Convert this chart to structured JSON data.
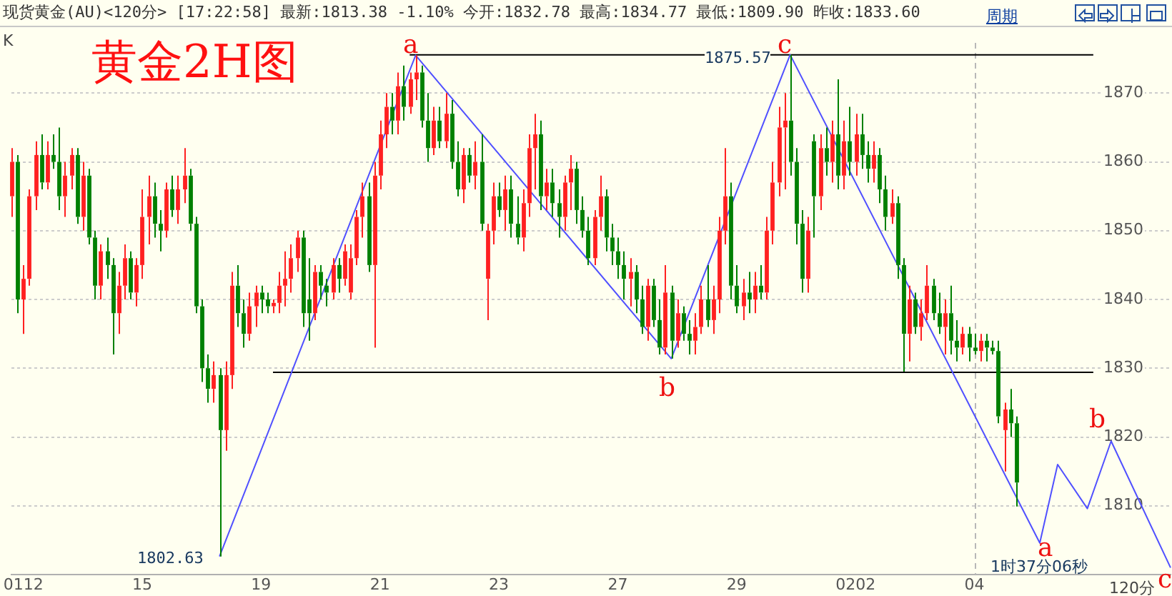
{
  "chart_data": {
    "type": "candlestick",
    "title": "黄金2H图",
    "subtitle": "现货黄金(AU)<120分>  [17:22:58] 最新:1813.38 -1.10% 今开:1832.78 最高:1834.77 最低:1809.90 昨收:1833.60",
    "categories": [
      null,
      null,
      "0112",
      null,
      null,
      null,
      null,
      null,
      null,
      null,
      null,
      null,
      null,
      null,
      null,
      null,
      null,
      null,
      null,
      null,
      null,
      null,
      "15",
      null,
      null,
      null,
      null,
      null,
      null,
      null,
      null,
      null,
      null,
      null,
      null,
      null,
      null,
      null,
      null,
      null,
      null,
      null,
      "19",
      null,
      null,
      null,
      null,
      null,
      null,
      null,
      null,
      null,
      null,
      null,
      null,
      null,
      null,
      null,
      null,
      null,
      null,
      null,
      "21",
      null,
      null,
      null,
      null,
      null,
      null,
      null,
      null,
      null,
      null,
      null,
      null,
      null,
      null,
      null,
      null,
      null,
      null,
      null,
      "23",
      null,
      null,
      null,
      null,
      null,
      null,
      null,
      null,
      null,
      null,
      null,
      null,
      null,
      null,
      null,
      null,
      null,
      null,
      null,
      "27",
      null,
      null,
      null,
      null,
      null,
      null,
      null,
      null,
      null,
      null,
      null,
      null,
      null,
      null,
      null,
      null,
      null,
      null,
      null,
      "29",
      null,
      null,
      null,
      null,
      null,
      null,
      null,
      null,
      null,
      null,
      null,
      null,
      null,
      null,
      null,
      null,
      null,
      null,
      null,
      "0202",
      null,
      null,
      null,
      null,
      null,
      null,
      null,
      null,
      null,
      null,
      null,
      null,
      null,
      null,
      null,
      null,
      null,
      null,
      null,
      "04",
      null,
      null,
      null,
      null,
      null,
      null,
      null,
      null,
      null,
      null,
      null,
      null,
      null,
      null,
      null,
      null,
      null,
      null,
      null,
      null,
      null,
      null,
      null,
      null,
      null,
      null,
      null,
      null,
      null,
      null,
      null,
      null,
      null
    ],
    "ylim": [
      1800,
      1877.3
    ],
    "yticks": [
      1810,
      1820,
      1830,
      1840,
      1850,
      1860,
      1870
    ],
    "grid": "y",
    "series": [
      {
        "type": "candlestick",
        "color": "#ff2020",
        "ohlc": [
          [
            1855,
            1862,
            1852,
            1860
          ],
          null,
          [
            1840,
            1845,
            1835,
            1843
          ],
          [
            1843,
            1856,
            1842,
            1855
          ],
          [
            1855,
            1863,
            1853,
            1861
          ],
          null,
          [
            1857,
            1863,
            1856,
            1861
          ],
          null,
          null,
          [
            1855,
            1860,
            1852,
            1858
          ],
          [
            1858,
            1862,
            1856,
            1861
          ],
          null,
          [
            1852,
            1860,
            1850,
            1858
          ],
          null,
          null,
          [
            1842,
            1848,
            1840,
            1847
          ],
          null,
          null,
          [
            1838,
            1844,
            1835,
            1842
          ],
          [
            1842,
            1848,
            1840,
            1846
          ],
          null,
          [
            1841,
            1846,
            1839,
            1845
          ],
          [
            1845,
            1856,
            1843,
            1852
          ],
          [
            1852,
            1858,
            1848,
            1855
          ],
          null,
          null,
          [
            1850,
            1857,
            1849,
            1856
          ],
          null,
          [
            1853,
            1858,
            1851,
            1856
          ],
          [
            1856,
            1862,
            1854,
            1858
          ],
          null,
          null,
          null,
          null,
          [
            1827,
            1831,
            1825,
            1829
          ],
          null,
          [
            1821,
            1831,
            1818,
            1829
          ],
          [
            1829,
            1844,
            1827,
            1842
          ],
          null,
          null,
          [
            1835,
            1841,
            1834,
            1839
          ],
          [
            1839,
            1842,
            1836,
            1841
          ],
          null,
          null,
          [
            1839,
            1840,
            1838,
            1839.5
          ],
          [
            1839.5,
            1844,
            1838,
            1842
          ],
          [
            1842,
            1847,
            1839,
            1843
          ],
          [
            1843,
            1848,
            1841,
            1846
          ],
          [
            1846,
            1850,
            1844,
            1849
          ],
          null,
          null,
          [
            1838,
            1845,
            1837,
            1844
          ],
          null,
          null,
          [
            1841,
            1846,
            1840,
            1845
          ],
          null,
          [
            1843,
            1848,
            1842,
            1847
          ],
          [
            1841,
            1848,
            1840,
            1846
          ],
          [
            1846,
            1853,
            1845,
            1852
          ],
          [
            1852,
            1857,
            1849,
            1855
          ],
          null,
          [
            1845,
            1860,
            1833,
            1858
          ],
          [
            1858,
            1866,
            1856,
            1864
          ],
          [
            1864,
            1870,
            1862,
            1868
          ],
          null,
          [
            1866,
            1873,
            1864,
            1871
          ],
          null,
          [
            1868,
            1873,
            1867,
            1872
          ],
          [
            1872,
            1875.5,
            1869,
            1873
          ],
          null,
          null,
          [
            1862,
            1868,
            1861,
            1866
          ],
          null,
          [
            1863,
            1870,
            1862,
            1867
          ],
          null,
          null,
          [
            1856,
            1862,
            1854,
            1861
          ],
          null,
          [
            1858,
            1863,
            1856,
            1860
          ],
          null,
          [
            1843,
            1851,
            1837,
            1850
          ],
          [
            1850,
            1857,
            1848,
            1855
          ],
          null,
          [
            1853,
            1858,
            1850,
            1856
          ],
          null,
          null,
          [
            1849,
            1856,
            1847,
            1854
          ],
          [
            1854,
            1864,
            1852,
            1862
          ],
          [
            1862,
            1867,
            1856,
            1864
          ],
          null,
          [
            1855,
            1859,
            1853,
            1857
          ],
          null,
          null,
          [
            1852,
            1858,
            1850,
            1857
          ],
          [
            1857,
            1861,
            1853,
            1859
          ],
          null,
          null,
          null,
          [
            1846,
            1853,
            1845,
            1852
          ],
          [
            1852,
            1858,
            1850,
            1855
          ],
          null,
          null,
          null,
          null,
          [
            1843,
            1846,
            1839,
            1844
          ],
          null,
          null,
          [
            1836,
            1843,
            1834,
            1842
          ],
          null,
          null,
          [
            1833,
            1845,
            1832,
            1841
          ],
          null,
          [
            1834,
            1840,
            1833,
            1838
          ],
          null,
          null,
          [
            1834,
            1838,
            1832,
            1836
          ],
          [
            1836,
            1842,
            1835,
            1840
          ],
          null,
          [
            1837,
            1842,
            1835,
            1840
          ],
          [
            1840,
            1852,
            1838,
            1850
          ],
          [
            1850,
            1862,
            1848,
            1855
          ],
          null,
          null,
          [
            1839,
            1843,
            1837,
            1841
          ],
          null,
          [
            1840,
            1844,
            1838,
            1842
          ],
          null,
          [
            1841,
            1852,
            1840,
            1850
          ],
          [
            1850,
            1860,
            1848,
            1857
          ],
          [
            1857,
            1868,
            1855,
            1865
          ],
          [
            1865,
            1870,
            1856,
            1866
          ],
          null,
          null,
          null,
          [
            1843,
            1852,
            1841,
            1850
          ],
          null,
          [
            1855,
            1864,
            1853,
            1862
          ],
          null,
          [
            1860,
            1866,
            1857,
            1864
          ],
          null,
          [
            1858,
            1866,
            1856,
            1863
          ],
          null,
          [
            1860,
            1867,
            1858,
            1864
          ],
          null,
          null,
          [
            1859,
            1863,
            1857,
            1861
          ],
          null,
          null,
          [
            1852,
            1856,
            1851,
            1854
          ],
          null,
          null,
          [
            1835,
            1842,
            1831,
            1840
          ],
          null,
          [
            1836,
            1840,
            1834,
            1838
          ],
          [
            1838,
            1845,
            1837,
            1842
          ],
          null,
          null,
          [
            1836,
            1840,
            1832,
            1838
          ],
          null,
          null,
          [
            1833,
            1836,
            1832,
            1835
          ],
          null,
          null,
          [
            1832.5,
            1835,
            1831,
            1834
          ],
          null,
          null,
          null,
          [
            1821,
            1825,
            1815,
            1824
          ],
          null,
          null,
          null,
          null,
          null,
          null,
          null,
          null,
          null,
          null,
          null,
          null,
          null,
          null,
          null,
          null,
          null,
          null,
          null,
          null,
          null,
          null,
          null,
          null,
          null,
          null,
          null,
          null
        ]
      },
      {
        "type": "candlestick",
        "color": "#008000",
        "ohlc": [
          null,
          [
            1860,
            1861,
            1838,
            1840
          ],
          null,
          null,
          null,
          [
            1861,
            1864,
            1856,
            1857
          ],
          null,
          [
            1861,
            1864,
            1859,
            1860
          ],
          [
            1860,
            1865,
            1853,
            1855
          ],
          null,
          null,
          [
            1861,
            1862,
            1851,
            1852
          ],
          null,
          [
            1858,
            1859,
            1848,
            1849
          ],
          [
            1849,
            1850,
            1840,
            1842
          ],
          null,
          [
            1847,
            1849,
            1843,
            1845
          ],
          [
            1845,
            1846,
            1832,
            1838
          ],
          null,
          null,
          [
            1846,
            1847,
            1840,
            1841
          ],
          null,
          null,
          null,
          [
            1855,
            1857,
            1849,
            1851
          ],
          [
            1851,
            1853,
            1847,
            1850
          ],
          null,
          [
            1856,
            1858,
            1852,
            1853
          ],
          null,
          null,
          [
            1858,
            1859,
            1850,
            1851
          ],
          [
            1851,
            1852,
            1838,
            1839
          ],
          [
            1839,
            1840,
            1828,
            1830
          ],
          [
            1830,
            1832,
            1825,
            1827
          ],
          null,
          [
            1829,
            1830,
            1802.63,
            1821
          ],
          null,
          null,
          [
            1842,
            1845,
            1836,
            1838
          ],
          [
            1838,
            1840,
            1833,
            1835
          ],
          null,
          null,
          [
            1841,
            1842,
            1838,
            1840
          ],
          [
            1840,
            1841,
            1838,
            1839
          ],
          null,
          null,
          null,
          null,
          null,
          [
            1849,
            1850,
            1836,
            1838
          ],
          [
            1840,
            1846,
            1834,
            1838
          ],
          null,
          [
            1844,
            1845,
            1840,
            1842
          ],
          [
            1842,
            1843,
            1839,
            1841
          ],
          null,
          [
            1845,
            1846,
            1841,
            1843
          ],
          null,
          null,
          null,
          null,
          [
            1855,
            1857,
            1844,
            1845
          ],
          null,
          null,
          null,
          [
            1868,
            1870,
            1864,
            1866
          ],
          null,
          [
            1871,
            1874,
            1866,
            1868
          ],
          null,
          null,
          [
            1873,
            1874,
            1865,
            1866
          ],
          [
            1866,
            1870,
            1860,
            1862
          ],
          null,
          [
            1866,
            1868,
            1862,
            1863
          ],
          null,
          [
            1867,
            1869,
            1859,
            1860
          ],
          [
            1860,
            1863,
            1855,
            1856
          ],
          null,
          [
            1861,
            1862,
            1857,
            1858
          ],
          null,
          [
            1860,
            1864,
            1850,
            1851
          ],
          null,
          null,
          [
            1855,
            1857,
            1852,
            1853
          ],
          null,
          [
            1856,
            1858,
            1849,
            1851
          ],
          [
            1851,
            1855,
            1848,
            1849
          ],
          null,
          null,
          null,
          [
            1864,
            1866,
            1853,
            1855
          ],
          null,
          [
            1857,
            1859,
            1852,
            1854
          ],
          [
            1854,
            1856,
            1849,
            1852
          ],
          null,
          null,
          [
            1859,
            1860,
            1851,
            1853
          ],
          [
            1853,
            1855,
            1849,
            1850
          ],
          [
            1850,
            1852,
            1845,
            1846
          ],
          null,
          null,
          [
            1855,
            1856,
            1847,
            1849
          ],
          [
            1849,
            1851,
            1845,
            1847
          ],
          [
            1847,
            1849,
            1843,
            1845
          ],
          [
            1845,
            1847,
            1840,
            1843
          ],
          null,
          [
            1844,
            1845,
            1838,
            1840
          ],
          [
            1840,
            1842,
            1835,
            1836
          ],
          null,
          [
            1842,
            1843,
            1836,
            1837
          ],
          [
            1837,
            1840,
            1832,
            1833
          ],
          null,
          [
            1841,
            1842,
            1831.4,
            1834
          ],
          null,
          [
            1838,
            1839,
            1834,
            1835
          ],
          [
            1835,
            1837,
            1832,
            1834
          ],
          null,
          null,
          [
            1840,
            1845,
            1836,
            1837
          ],
          null,
          null,
          null,
          [
            1855,
            1857,
            1840,
            1842
          ],
          [
            1842,
            1845,
            1838,
            1839
          ],
          null,
          [
            1841,
            1844,
            1838,
            1840
          ],
          null,
          [
            1842,
            1845,
            1840,
            1841
          ],
          null,
          null,
          null,
          null,
          [
            1866,
            1875.57,
            1858,
            1860
          ],
          [
            1860,
            1862,
            1848,
            1851
          ],
          [
            1851,
            1853,
            1841,
            1843
          ],
          null,
          [
            1863,
            1864,
            1849,
            1855
          ],
          null,
          [
            1862,
            1865,
            1858,
            1860
          ],
          null,
          [
            1864,
            1872,
            1856,
            1858
          ],
          null,
          [
            1863,
            1868,
            1858,
            1860
          ],
          null,
          [
            1864,
            1867,
            1859,
            1861
          ],
          [
            1861,
            1863,
            1857,
            1859
          ],
          null,
          [
            1861,
            1862,
            1854,
            1856
          ],
          [
            1856,
            1858,
            1850,
            1852
          ],
          null,
          [
            1854,
            1855,
            1843,
            1845
          ],
          [
            1845,
            1846,
            1829.5,
            1835
          ],
          null,
          [
            1840,
            1841,
            1835,
            1836
          ],
          null,
          null,
          [
            1842,
            1843,
            1837,
            1838
          ],
          [
            1838,
            1841,
            1835,
            1836
          ],
          null,
          [
            1838,
            1842,
            1832,
            1834
          ],
          [
            1834,
            1837,
            1831,
            1833
          ],
          null,
          [
            1835,
            1836,
            1831,
            1833
          ],
          [
            1833,
            1835,
            1832,
            1832.5
          ],
          null,
          [
            1834,
            1835,
            1831,
            1833
          ],
          [
            1833,
            1834,
            1832,
            1832.5
          ],
          [
            1832.5,
            1834,
            1822,
            1823
          ],
          null,
          [
            1824,
            1827,
            1820,
            1822
          ],
          [
            1822,
            1823,
            1809.9,
            1813.38
          ],
          null,
          null,
          null,
          null,
          null,
          null,
          null,
          null,
          null,
          null,
          null,
          null,
          null,
          null,
          null,
          null,
          null,
          null,
          null,
          null,
          null,
          null,
          null,
          null,
          null,
          null
        ]
      },
      {
        "type": "line",
        "color": "#5050ff",
        "values": [
          null,
          null,
          null,
          null,
          null,
          null,
          null,
          null,
          null,
          null,
          null,
          null,
          null,
          null,
          null,
          null,
          null,
          null,
          null,
          null,
          null,
          null,
          null,
          null,
          null,
          null,
          null,
          null,
          null,
          null,
          null,
          null,
          null,
          null,
          null,
          1802.63,
          null,
          null,
          null,
          null,
          null,
          null,
          null,
          null,
          null,
          null,
          null,
          null,
          null,
          null,
          null,
          null,
          null,
          null,
          null,
          null,
          null,
          null,
          null,
          null,
          null,
          null,
          null,
          null,
          null,
          null,
          null,
          null,
          1875.5,
          null,
          null,
          null,
          null,
          null,
          null,
          null,
          null,
          null,
          null,
          null,
          null,
          null,
          null,
          null,
          null,
          null,
          null,
          null,
          null,
          null,
          null,
          null,
          null,
          null,
          null,
          null,
          null,
          null,
          null,
          null,
          null,
          null,
          null,
          null,
          null,
          null,
          null,
          null,
          null,
          null,
          null,
          1831.4,
          null,
          null,
          null,
          null,
          null,
          null,
          null,
          null,
          null,
          null,
          null,
          null,
          null,
          null,
          null,
          null,
          null,
          null,
          null,
          1875.57,
          null,
          null,
          null,
          null,
          null,
          null,
          null,
          null,
          null,
          null,
          null,
          null,
          null,
          null,
          null,
          null,
          null,
          null,
          null,
          null,
          null,
          null,
          null,
          null,
          null,
          null,
          null,
          null,
          null,
          null,
          null,
          null,
          null,
          null,
          null,
          null,
          null,
          null,
          null,
          null,
          null,
          1804.6,
          null,
          null,
          1816,
          null,
          null,
          null,
          null,
          1809.6,
          null,
          null,
          null,
          1819.4,
          null,
          null,
          null,
          null,
          null,
          null,
          null,
          null,
          null,
          1801
        ]
      },
      {
        "type": "line",
        "color": "#000000",
        "values": [
          null,
          null,
          null,
          null,
          null,
          null,
          null,
          null,
          null,
          null,
          null,
          null,
          null,
          null,
          null,
          null,
          null,
          null,
          null,
          null,
          null,
          null,
          null,
          null,
          null,
          null,
          null,
          null,
          null,
          null,
          null,
          null,
          null,
          null,
          null,
          null,
          null,
          null,
          null,
          null,
          null,
          null,
          null,
          null,
          null,
          null,
          null,
          null,
          null,
          null,
          null,
          null,
          null,
          null,
          null,
          null,
          null,
          null,
          null,
          null,
          null,
          null,
          null,
          null,
          null,
          null,
          null,
          1875.57,
          null,
          null,
          null,
          null,
          null,
          null,
          null,
          null,
          null,
          null,
          null,
          null,
          null,
          null,
          null,
          null,
          null,
          null,
          null,
          null,
          null,
          null,
          null,
          null,
          null,
          null,
          null,
          null,
          null,
          null,
          null,
          null,
          null,
          null,
          null,
          null,
          null,
          null,
          null,
          null,
          null,
          null,
          null,
          null,
          null,
          null,
          null,
          null,
          null,
          null,
          null,
          null,
          null,
          null,
          null,
          null,
          null,
          null,
          null,
          null,
          null,
          null,
          null,
          null,
          null,
          null,
          null,
          null,
          null,
          null,
          null,
          null,
          null,
          null,
          null,
          null,
          null,
          null,
          null,
          null,
          null,
          null,
          null,
          null,
          null,
          null,
          null,
          null,
          null,
          null,
          null,
          null,
          null,
          null,
          null,
          null,
          null,
          null,
          null,
          null,
          null,
          null,
          null,
          null,
          null,
          null,
          null,
          null,
          null,
          null,
          null,
          null,
          null,
          null,
          1875.57,
          null,
          null,
          null,
          null,
          null,
          null,
          null,
          null,
          null,
          null,
          null,
          null,
          null
        ]
      },
      {
        "type": "line",
        "color": "#000000",
        "values": [
          null,
          null,
          null,
          null,
          null,
          null,
          null,
          null,
          null,
          null,
          null,
          null,
          null,
          null,
          null,
          null,
          null,
          null,
          null,
          null,
          null,
          null,
          null,
          null,
          null,
          null,
          null,
          null,
          null,
          null,
          null,
          null,
          null,
          null,
          null,
          null,
          null,
          null,
          null,
          null,
          null,
          null,
          null,
          null,
          1829.4,
          null,
          null,
          null,
          null,
          null,
          null,
          null,
          null,
          null,
          null,
          null,
          null,
          null,
          null,
          null,
          null,
          null,
          null,
          null,
          null,
          null,
          null,
          null,
          null,
          null,
          null,
          null,
          null,
          null,
          null,
          null,
          null,
          null,
          null,
          null,
          null,
          null,
          null,
          null,
          null,
          null,
          null,
          null,
          null,
          null,
          null,
          null,
          null,
          null,
          null,
          null,
          null,
          null,
          null,
          null,
          null,
          null,
          null,
          null,
          null,
          null,
          null,
          null,
          null,
          null,
          null,
          null,
          null,
          null,
          null,
          null,
          null,
          null,
          null,
          null,
          null,
          null,
          null,
          null,
          null,
          null,
          null,
          null,
          null,
          null,
          null,
          null,
          null,
          null,
          null,
          null,
          null,
          null,
          null,
          null,
          null,
          null,
          null,
          null,
          null,
          null,
          null,
          null,
          null,
          null,
          null,
          null,
          null,
          null,
          null,
          null,
          null,
          null,
          null,
          null,
          null,
          null,
          null,
          null,
          null,
          null,
          null,
          null,
          null,
          null,
          null,
          null,
          null,
          null,
          null,
          null,
          null,
          null,
          null,
          null,
          null,
          null,
          1829.4,
          null,
          null,
          null,
          null,
          null,
          null,
          null,
          null,
          null,
          null,
          null,
          null,
          null
        ]
      }
    ],
    "ref_lines": [
      {
        "axis": "x",
        "value": "04",
        "line_style": "dashed",
        "color": "#b8b8b8"
      }
    ],
    "xlabel": "120分",
    "annotations": [
      "K",
      "周期",
      "a",
      "b",
      "c",
      "a",
      "b",
      "c",
      "1802.63",
      "1875.57",
      "1时37分06秒"
    ]
  }
}
